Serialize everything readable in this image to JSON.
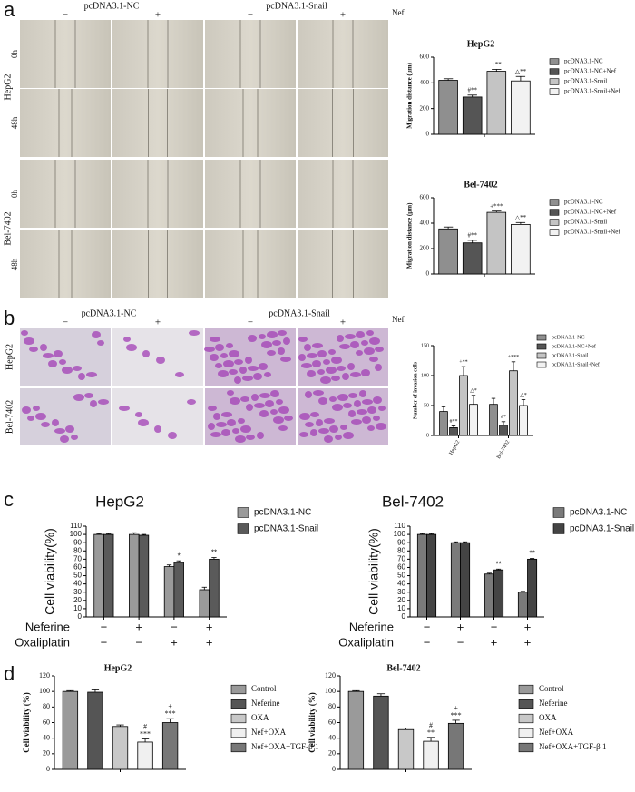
{
  "panels": {
    "a": {
      "label": "a",
      "columns": [
        "pcDNA3.1-NC",
        "pcDNA3.1-Snail"
      ],
      "signs": [
        "−",
        "+",
        "−",
        "+"
      ],
      "treatment": "Nef",
      "rows": [
        "HepG2",
        "Bel-7402"
      ],
      "times": [
        "0h",
        "48h",
        "0h",
        "48h"
      ]
    },
    "b": {
      "label": "b",
      "columns": [
        "pcDNA3.1-NC",
        "pcDNA3.1-Snail"
      ],
      "signs": [
        "−",
        "+",
        "−",
        "+"
      ],
      "treatment": "Nef",
      "rows": [
        "HepG2",
        "Bel-7402"
      ]
    },
    "c": {
      "label": "c"
    },
    "d": {
      "label": "d"
    }
  },
  "chart_data": [
    {
      "type": "bar",
      "title": "HepG2",
      "y_label": "Migration distance (μm)",
      "categories": [
        null
      ],
      "series": [
        {
          "name": "pcDNA3.1-NC",
          "color": "#8f8f8f",
          "values": [
            420
          ],
          "errors": [
            12
          ],
          "annotations": [
            null
          ]
        },
        {
          "name": "pcDNA3.1-NC+Nef",
          "color": "#555555",
          "values": [
            290
          ],
          "errors": [
            15
          ],
          "annotations": [
            "#**"
          ]
        },
        {
          "name": "pcDNA3.1-Snail",
          "color": "#c4c4c4",
          "values": [
            490
          ],
          "errors": [
            15
          ],
          "annotations": [
            "+**"
          ]
        },
        {
          "name": "pcDNA3.1-Snail+Nef",
          "color": "#f2f2f2",
          "values": [
            415
          ],
          "errors": [
            35
          ],
          "annotations": [
            "△**"
          ]
        }
      ],
      "ylim": [
        0,
        600
      ],
      "yticks": [
        0,
        200,
        400,
        600
      ]
    },
    {
      "type": "bar",
      "title": "Bel-7402",
      "y_label": "Migration distance (μm)",
      "categories": [
        null
      ],
      "series": [
        {
          "name": "pcDNA3.1-NC",
          "color": "#8f8f8f",
          "values": [
            355
          ],
          "errors": [
            15
          ],
          "annotations": [
            null
          ]
        },
        {
          "name": "pcDNA3.1-NC+Nef",
          "color": "#555555",
          "values": [
            245
          ],
          "errors": [
            20
          ],
          "annotations": [
            "#**"
          ]
        },
        {
          "name": "pcDNA3.1-Snail",
          "color": "#c4c4c4",
          "values": [
            485
          ],
          "errors": [
            10
          ],
          "annotations": [
            "+***"
          ]
        },
        {
          "name": "pcDNA3.1-Snail+Nef",
          "color": "#f2f2f2",
          "values": [
            390
          ],
          "errors": [
            15
          ],
          "annotations": [
            "△**"
          ]
        }
      ],
      "ylim": [
        0,
        600
      ],
      "yticks": [
        0,
        200,
        400,
        600
      ]
    },
    {
      "type": "bar",
      "y_label": "Number of invasion cells",
      "categories": [
        "HepG2",
        "Bel-7402"
      ],
      "series": [
        {
          "name": "pcDNA3.1-NC",
          "color": "#8f8f8f",
          "values": [
            40,
            52
          ],
          "errors": [
            8,
            10
          ],
          "annotations": [
            null,
            null
          ]
        },
        {
          "name": "pcDNA3.1-NC+Nef",
          "color": "#555555",
          "values": [
            13,
            17
          ],
          "errors": [
            3,
            6
          ],
          "annotations": [
            "#**",
            "#*"
          ]
        },
        {
          "name": "pcDNA3.1-Snail",
          "color": "#c4c4c4",
          "values": [
            100,
            108
          ],
          "errors": [
            15,
            15
          ],
          "annotations": [
            "+**",
            "+***"
          ]
        },
        {
          "name": "pcDNA3.1-Snail+Nef",
          "color": "#f2f2f2",
          "values": [
            52,
            50
          ],
          "errors": [
            15,
            10
          ],
          "annotations": [
            "△*",
            "△*"
          ]
        }
      ],
      "ylim": [
        0,
        150
      ],
      "yticks": [
        0,
        50,
        100,
        150
      ]
    },
    {
      "type": "bar",
      "title": "HepG2",
      "y_label": "Cell viability(%)",
      "categories": [
        null,
        null,
        null,
        null
      ],
      "series": [
        {
          "name": "pcDNA3.1-NC",
          "color": "#9a9a9a",
          "values": [
            100,
            100,
            61,
            33
          ],
          "errors": [
            1,
            2,
            2,
            3
          ],
          "annotations": [
            null,
            null,
            null,
            null
          ]
        },
        {
          "name": "pcDNA3.1-Snail",
          "color": "#5a5a5a",
          "values": [
            100,
            99,
            66,
            70
          ],
          "errors": [
            1,
            1,
            2,
            2
          ],
          "annotations": [
            null,
            null,
            "*",
            "**"
          ]
        }
      ],
      "conditions": [
        {
          "name": "Neferine",
          "values": [
            "−",
            "+",
            "−",
            "+"
          ]
        },
        {
          "name": "Oxaliplatin",
          "values": [
            "−",
            "−",
            "+",
            "+"
          ]
        }
      ],
      "ylim": [
        0,
        110
      ],
      "yticks": [
        0,
        10,
        20,
        30,
        40,
        50,
        60,
        70,
        80,
        90,
        100,
        110
      ]
    },
    {
      "type": "bar",
      "title": "Bel-7402",
      "y_label": "Cell viability(%)",
      "categories": [
        null,
        null,
        null,
        null
      ],
      "series": [
        {
          "name": "pcDNA3.1-NC",
          "color": "#7a7a7a",
          "values": [
            100,
            90,
            52,
            30
          ],
          "errors": [
            1,
            1,
            1,
            1
          ],
          "annotations": [
            null,
            null,
            null,
            null
          ]
        },
        {
          "name": "pcDNA3.1-Snail",
          "color": "#444444",
          "values": [
            100,
            90,
            57,
            70
          ],
          "errors": [
            1,
            1,
            1,
            1
          ],
          "annotations": [
            null,
            null,
            "**",
            "**"
          ]
        }
      ],
      "conditions": [
        {
          "name": "Neferine",
          "values": [
            "−",
            "+",
            "−",
            "+"
          ]
        },
        {
          "name": "Oxaliplatin",
          "values": [
            "−",
            "−",
            "+",
            "+"
          ]
        }
      ],
      "ylim": [
        0,
        110
      ],
      "yticks": [
        0,
        10,
        20,
        30,
        40,
        50,
        60,
        70,
        80,
        90,
        100,
        110
      ]
    },
    {
      "type": "bar",
      "title": "HepG2",
      "y_label": "Cell viability (%)",
      "categories": [
        null
      ],
      "series": [
        {
          "name": "Control",
          "color": "#9a9a9a",
          "values": [
            100
          ],
          "errors": [
            1
          ],
          "annotations": [
            null
          ]
        },
        {
          "name": "Neferine",
          "color": "#555555",
          "values": [
            99
          ],
          "errors": [
            3
          ],
          "annotations": [
            null
          ]
        },
        {
          "name": "OXA",
          "color": "#c8c8c8",
          "values": [
            55
          ],
          "errors": [
            2
          ],
          "annotations": [
            null
          ]
        },
        {
          "name": "Nef+OXA",
          "color": "#f0f0f0",
          "values": [
            35
          ],
          "errors": [
            4
          ],
          "annotations": [
            "#\n***"
          ]
        },
        {
          "name": "Nef+OXA+TGF-β 1",
          "color": "#777777",
          "values": [
            60
          ],
          "errors": [
            5
          ],
          "annotations": [
            "+\n***"
          ]
        }
      ],
      "ylim": [
        0,
        120
      ],
      "yticks": [
        0,
        20,
        40,
        60,
        80,
        100,
        120
      ]
    },
    {
      "type": "bar",
      "title": "Bel-7402",
      "y_label": "Cell viability (%)",
      "categories": [
        null
      ],
      "series": [
        {
          "name": "Control",
          "color": "#9a9a9a",
          "values": [
            100
          ],
          "errors": [
            1
          ],
          "annotations": [
            null
          ]
        },
        {
          "name": "Neferine",
          "color": "#555555",
          "values": [
            94
          ],
          "errors": [
            3
          ],
          "annotations": [
            null
          ]
        },
        {
          "name": "OXA",
          "color": "#c8c8c8",
          "values": [
            51
          ],
          "errors": [
            2
          ],
          "annotations": [
            null
          ]
        },
        {
          "name": "Nef+OXA",
          "color": "#f0f0f0",
          "values": [
            36
          ],
          "errors": [
            5
          ],
          "annotations": [
            "#\n**"
          ]
        },
        {
          "name": "Nef+OXA+TGF-β 1",
          "color": "#777777",
          "values": [
            59
          ],
          "errors": [
            4
          ],
          "annotations": [
            "+\n***"
          ]
        }
      ],
      "ylim": [
        0,
        120
      ],
      "yticks": [
        0,
        20,
        40,
        60,
        80,
        100,
        120
      ]
    }
  ]
}
